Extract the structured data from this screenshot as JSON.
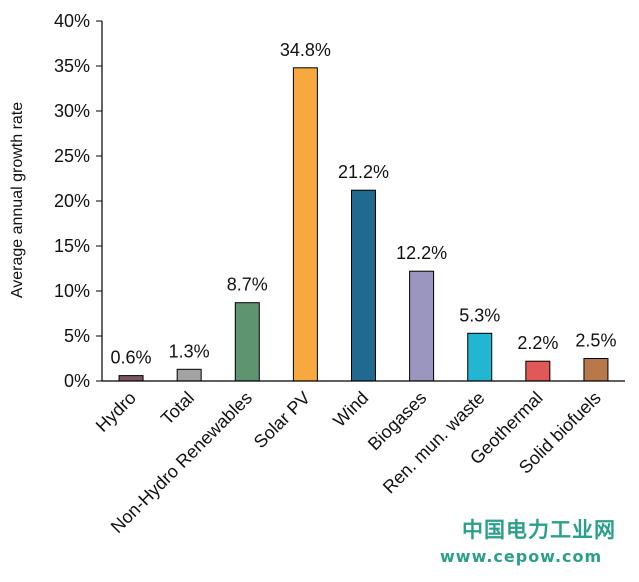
{
  "chart_data": {
    "type": "bar",
    "ylabel": "Average annual growth rate",
    "ylim": [
      0,
      40
    ],
    "yticks": [
      "0%",
      "5%",
      "10%",
      "15%",
      "20%",
      "25%",
      "30%",
      "35%",
      "40%"
    ],
    "categories": [
      "Hydro",
      "Total",
      "Non-Hydro Renewables",
      "Solar PV",
      "Wind",
      "Biogases",
      "Ren. mun. waste",
      "Geothermal",
      "Solid biofuels"
    ],
    "values": [
      0.6,
      1.3,
      8.7,
      34.8,
      21.2,
      12.2,
      5.3,
      2.2,
      2.5
    ],
    "value_labels": [
      "0.6%",
      "1.3%",
      "8.7%",
      "34.8%",
      "21.2%",
      "12.2%",
      "5.3%",
      "2.2%",
      "2.5%"
    ],
    "colors": [
      "#7b5560",
      "#a3a3a3",
      "#5f9471",
      "#f7a940",
      "#1f6a8e",
      "#9b96c0",
      "#23b6d3",
      "#e05858",
      "#b8794a"
    ],
    "grid": false,
    "legend": "none"
  },
  "watermark": {
    "title": "中国电力工业网",
    "url": "www.cepow.com"
  }
}
